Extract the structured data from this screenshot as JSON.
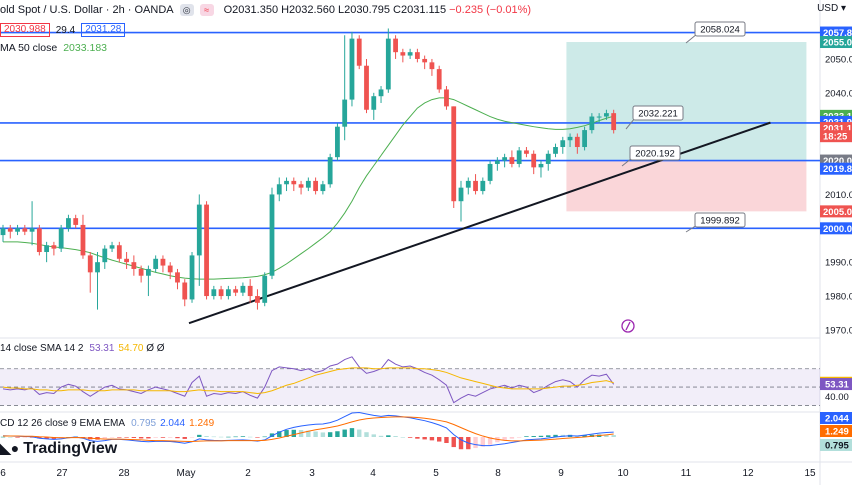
{
  "header": {
    "symbol": "old Spot / U.S. Dollar · 2h · OANDA",
    "ohlc": "O2031.350 H2032.560 L2030.795 C2031.115",
    "change": "−0.235 (−0.01%)",
    "sell_price": "2030.988",
    "spread": "29.4",
    "buy_price": "2031.28",
    "currency": "USD"
  },
  "indicators": {
    "ma_label": "MA 50 close",
    "ma_value": "2033.183",
    "rsi_label": "14 close SMA 14 2",
    "rsi_value": "53.31",
    "rsi_ma_value": "54.70",
    "rsi_extra": "Ø Ø",
    "macd_label": "CD 12 26 close 9 EMA EMA",
    "macd_hist": "0.795",
    "macd_line": "2.044",
    "macd_signal": "1.249"
  },
  "brand": "TradingView",
  "colors": {
    "up": "#26a69a",
    "down": "#ef5350",
    "ma": "#4caf50",
    "hline": "#2962ff",
    "trend": "#131722",
    "profit": "#b2dfdb",
    "loss": "#f8c8cc",
    "rsi": "#7e57c2",
    "rsi_ma": "#f5b700",
    "macd": "#2962ff",
    "signal": "#ff6d00"
  },
  "chart_data": {
    "type": "candlestick",
    "instrument": "XAU/USD",
    "timeframe": "2h",
    "x_ticks": [
      "6",
      "27",
      "28",
      "May",
      "2",
      "3",
      "4",
      "5",
      "8",
      "9",
      "10",
      "11",
      "12",
      "15"
    ],
    "y_ticks": [
      1970.0,
      1980.0,
      1990.0,
      2000.0,
      2010.0,
      2020.0,
      2030.0,
      2040.0,
      2050.0
    ],
    "ylim": [
      1968.5,
      2061.5
    ],
    "horizontal_lines": [
      2057.8,
      2031.1,
      2020.0,
      2000.0
    ],
    "annotations": [
      {
        "label": "2058.024",
        "price": 2058.024
      },
      {
        "label": "2032.221",
        "price": 2032.221
      },
      {
        "label": "2020.192",
        "price": 2020.192
      },
      {
        "label": "1999.892",
        "price": 1999.892
      }
    ],
    "position": {
      "entry": 2020.0,
      "target": 2055.0,
      "stop": 2005.0
    },
    "trendline": {
      "from_bar": 0.0,
      "from_price": 1972.0,
      "to_bar": 77.5,
      "to_price": 2031.2
    },
    "price_labels": [
      {
        "label": "2057.8",
        "price": 2057.8,
        "color": "#2962ff"
      },
      {
        "label": "2055.0",
        "price": 2055.0,
        "color": "#26a69a"
      },
      {
        "label": "2033.1",
        "price": 2033.2,
        "color": "#4caf50"
      },
      {
        "label": "2031.9",
        "price": 2031.4,
        "color": "#2962ff"
      },
      {
        "label": "2031.1",
        "price": 2029.6,
        "color": "#ef5350"
      },
      {
        "label": "18:25",
        "price": 2027.2,
        "color": "#ef5350"
      },
      {
        "label": "2020.0",
        "price": 2020.0,
        "color": "#787b86"
      },
      {
        "label": "2019.8",
        "price": 2017.6,
        "color": "#2962ff"
      },
      {
        "label": "2005.0",
        "price": 2005.0,
        "color": "#ef5350"
      },
      {
        "label": "2000.0",
        "price": 2000.0,
        "color": "#2962ff"
      }
    ],
    "candles": [
      {
        "o": 1998,
        "h": 2001,
        "l": 1996,
        "c": 2000
      },
      {
        "o": 2000,
        "h": 2001,
        "l": 1997,
        "c": 1999
      },
      {
        "o": 1999,
        "h": 2001,
        "l": 1998,
        "c": 2000
      },
      {
        "o": 2000,
        "h": 2001,
        "l": 1998,
        "c": 1999
      },
      {
        "o": 1999,
        "h": 2008,
        "l": 1995,
        "c": 2000
      },
      {
        "o": 2000,
        "h": 2001,
        "l": 1992,
        "c": 1993
      },
      {
        "o": 1993,
        "h": 1996,
        "l": 1990,
        "c": 1995
      },
      {
        "o": 1995,
        "h": 1996,
        "l": 1992,
        "c": 1994
      },
      {
        "o": 1994,
        "h": 2001,
        "l": 1993,
        "c": 2000
      },
      {
        "o": 2000,
        "h": 2004,
        "l": 1999,
        "c": 2003
      },
      {
        "o": 2003,
        "h": 2004,
        "l": 2000,
        "c": 2001
      },
      {
        "o": 2001,
        "h": 2004,
        "l": 1991,
        "c": 1992
      },
      {
        "o": 1992,
        "h": 1993,
        "l": 1981,
        "c": 1987
      },
      {
        "o": 1987,
        "h": 1993,
        "l": 1976,
        "c": 1990
      },
      {
        "o": 1990,
        "h": 1995,
        "l": 1988,
        "c": 1994
      },
      {
        "o": 1994,
        "h": 1996,
        "l": 1993,
        "c": 1995
      },
      {
        "o": 1995,
        "h": 1996,
        "l": 1990,
        "c": 1991
      },
      {
        "o": 1991,
        "h": 1993,
        "l": 1988,
        "c": 1990
      },
      {
        "o": 1990,
        "h": 1992,
        "l": 1986,
        "c": 1988
      },
      {
        "o": 1988,
        "h": 1989,
        "l": 1984,
        "c": 1986
      },
      {
        "o": 1986,
        "h": 1989,
        "l": 1980,
        "c": 1988
      },
      {
        "o": 1988,
        "h": 1992,
        "l": 1987,
        "c": 1991
      },
      {
        "o": 1991,
        "h": 1992,
        "l": 1987,
        "c": 1989
      },
      {
        "o": 1989,
        "h": 1990,
        "l": 1985,
        "c": 1987
      },
      {
        "o": 1987,
        "h": 1988,
        "l": 1982,
        "c": 1984
      },
      {
        "o": 1984,
        "h": 1985,
        "l": 1977,
        "c": 1979
      },
      {
        "o": 1979,
        "h": 1993,
        "l": 1978,
        "c": 1992
      },
      {
        "o": 1992,
        "h": 2010,
        "l": 1983,
        "c": 2007
      },
      {
        "o": 2007,
        "h": 2008,
        "l": 1979,
        "c": 1980
      },
      {
        "o": 1980,
        "h": 1983,
        "l": 1979,
        "c": 1982
      },
      {
        "o": 1982,
        "h": 1983,
        "l": 1979,
        "c": 1980
      },
      {
        "o": 1980,
        "h": 1983,
        "l": 1979,
        "c": 1982
      },
      {
        "o": 1982,
        "h": 1983,
        "l": 1980,
        "c": 1981
      },
      {
        "o": 1981,
        "h": 1984,
        "l": 1980,
        "c": 1983
      },
      {
        "o": 1983,
        "h": 1985,
        "l": 1978,
        "c": 1980
      },
      {
        "o": 1980,
        "h": 1982,
        "l": 1976,
        "c": 1978
      },
      {
        "o": 1978,
        "h": 1987,
        "l": 1977,
        "c": 1986
      },
      {
        "o": 1986,
        "h": 2012,
        "l": 1985,
        "c": 2010
      },
      {
        "o": 2010,
        "h": 2015,
        "l": 2008,
        "c": 2013
      },
      {
        "o": 2013,
        "h": 2015,
        "l": 2011,
        "c": 2014
      },
      {
        "o": 2014,
        "h": 2015,
        "l": 2011,
        "c": 2013
      },
      {
        "o": 2013,
        "h": 2014,
        "l": 2010,
        "c": 2012
      },
      {
        "o": 2012,
        "h": 2015,
        "l": 2011,
        "c": 2014
      },
      {
        "o": 2014,
        "h": 2015,
        "l": 2010,
        "c": 2011
      },
      {
        "o": 2011,
        "h": 2014,
        "l": 2010,
        "c": 2013
      },
      {
        "o": 2013,
        "h": 2022,
        "l": 2012,
        "c": 2021
      },
      {
        "o": 2021,
        "h": 2031,
        "l": 2020,
        "c": 2030
      },
      {
        "o": 2030,
        "h": 2057,
        "l": 2026,
        "c": 2038
      },
      {
        "o": 2038,
        "h": 2058,
        "l": 2036,
        "c": 2056
      },
      {
        "o": 2056,
        "h": 2057,
        "l": 2047,
        "c": 2048
      },
      {
        "o": 2048,
        "h": 2050,
        "l": 2034,
        "c": 2035
      },
      {
        "o": 2035,
        "h": 2040,
        "l": 2032,
        "c": 2039
      },
      {
        "o": 2039,
        "h": 2042,
        "l": 2037,
        "c": 2041
      },
      {
        "o": 2041,
        "h": 2059,
        "l": 2040,
        "c": 2056
      },
      {
        "o": 2056,
        "h": 2057,
        "l": 2050,
        "c": 2052
      },
      {
        "o": 2052,
        "h": 2053,
        "l": 2049,
        "c": 2051
      },
      {
        "o": 2051,
        "h": 2053,
        "l": 2050,
        "c": 2052
      },
      {
        "o": 2052,
        "h": 2053,
        "l": 2049,
        "c": 2050
      },
      {
        "o": 2050,
        "h": 2051,
        "l": 2047,
        "c": 2049
      },
      {
        "o": 2049,
        "h": 2050,
        "l": 2045,
        "c": 2047
      },
      {
        "o": 2047,
        "h": 2048,
        "l": 2040,
        "c": 2041
      },
      {
        "o": 2041,
        "h": 2042,
        "l": 2035,
        "c": 2036
      },
      {
        "o": 2036,
        "h": 2036,
        "l": 2006,
        "c": 2008
      },
      {
        "o": 2008,
        "h": 2014,
        "l": 2002,
        "c": 2012
      },
      {
        "o": 2012,
        "h": 2015,
        "l": 2010,
        "c": 2014
      },
      {
        "o": 2014,
        "h": 2016,
        "l": 2010,
        "c": 2011
      },
      {
        "o": 2011,
        "h": 2015,
        "l": 2010,
        "c": 2014
      },
      {
        "o": 2014,
        "h": 2020,
        "l": 2013,
        "c": 2019
      },
      {
        "o": 2019,
        "h": 2021,
        "l": 2017,
        "c": 2020
      },
      {
        "o": 2020,
        "h": 2022,
        "l": 2018,
        "c": 2021
      },
      {
        "o": 2021,
        "h": 2023,
        "l": 2018,
        "c": 2019
      },
      {
        "o": 2019,
        "h": 2024,
        "l": 2018,
        "c": 2023
      },
      {
        "o": 2023,
        "h": 2024,
        "l": 2021,
        "c": 2022
      },
      {
        "o": 2022,
        "h": 2023,
        "l": 2016,
        "c": 2018
      },
      {
        "o": 2018,
        "h": 2020,
        "l": 2015,
        "c": 2019
      },
      {
        "o": 2019,
        "h": 2023,
        "l": 2017,
        "c": 2022
      },
      {
        "o": 2022,
        "h": 2025,
        "l": 2021,
        "c": 2024
      },
      {
        "o": 2024,
        "h": 2027,
        "l": 2022,
        "c": 2026
      },
      {
        "o": 2026,
        "h": 2028,
        "l": 2024,
        "c": 2027
      },
      {
        "o": 2027,
        "h": 2028,
        "l": 2022,
        "c": 2024
      },
      {
        "o": 2024,
        "h": 2030,
        "l": 2023,
        "c": 2029
      },
      {
        "o": 2029,
        "h": 2034,
        "l": 2028,
        "c": 2033
      },
      {
        "o": 2033,
        "h": 2034,
        "l": 2031,
        "c": 2033
      },
      {
        "o": 2033,
        "h": 2035,
        "l": 2032,
        "c": 2034
      },
      {
        "o": 2034,
        "h": 2035,
        "l": 2028,
        "c": 2029
      }
    ],
    "ma50": [
      1996,
      1996,
      1996,
      1995.8,
      1995.6,
      1995.2,
      1994.8,
      1994.5,
      1994.3,
      1994.0,
      1993.7,
      1993.3,
      1992.8,
      1992.0,
      1991.3,
      1990.6,
      1990.0,
      1989.4,
      1988.8,
      1988.2,
      1987.6,
      1987.0,
      1986.5,
      1986.0,
      1985.6,
      1985.3,
      1985.1,
      1985.0,
      1985.0,
      1985.0,
      1985.1,
      1985.2,
      1985.3,
      1985.4,
      1985.6,
      1985.8,
      1986.3,
      1987.0,
      1988.2,
      1989.5,
      1991.0,
      1992.5,
      1994.0,
      1995.6,
      1997.2,
      1999.0,
      2001.5,
      2004.5,
      2008.0,
      2012.0,
      2015.5,
      2018.5,
      2021.5,
      2024.5,
      2027.5,
      2030.5,
      2033.0,
      2035.5,
      2037.0,
      2038.0,
      2038.5,
      2038.5,
      2038.0,
      2037.0,
      2036.0,
      2035.0,
      2034.0,
      2033.0,
      2032.2,
      2031.6,
      2031.2,
      2030.8,
      2030.4,
      2030.0,
      2029.7,
      2029.4,
      2029.2,
      2029.2,
      2029.4,
      2029.8,
      2030.3,
      2031.0,
      2031.8,
      2032.5,
      2033.1
    ],
    "rsi": [
      48,
      47,
      48,
      47,
      49,
      42,
      44,
      43,
      50,
      53,
      51,
      45,
      40,
      45,
      50,
      52,
      48,
      47,
      45,
      43,
      47,
      50,
      48,
      46,
      43,
      40,
      55,
      62,
      40,
      43,
      42,
      44,
      43,
      45,
      41,
      38,
      50,
      68,
      72,
      71,
      70,
      68,
      70,
      66,
      68,
      73,
      75,
      80,
      83,
      72,
      65,
      67,
      70,
      80,
      75,
      72,
      73,
      70,
      66,
      63,
      58,
      52,
      33,
      38,
      42,
      40,
      44,
      48,
      50,
      52,
      49,
      52,
      50,
      44,
      47,
      52,
      56,
      58,
      56,
      50,
      58,
      63,
      62,
      64,
      53
    ],
    "rsi_ma": [
      50,
      49,
      49,
      48,
      48,
      47,
      47,
      46,
      46,
      47,
      47,
      47,
      46,
      46,
      46,
      47,
      47,
      47,
      47,
      46,
      46,
      46,
      46,
      46,
      45,
      45,
      46,
      47,
      46,
      46,
      45,
      45,
      45,
      45,
      44,
      43,
      44,
      46,
      49,
      52,
      54,
      57,
      60,
      63,
      65,
      67,
      69,
      70,
      71,
      71,
      71,
      70,
      70,
      71,
      71,
      71,
      71,
      70,
      70,
      69,
      68,
      66,
      63,
      60,
      58,
      56,
      54,
      52,
      50,
      49,
      48,
      48,
      48,
      48,
      48,
      49,
      50,
      51,
      51,
      52,
      53,
      55,
      56,
      57,
      54.7
    ],
    "rsi_levels": [
      70,
      50,
      30
    ],
    "rsi_axis_ticks": [
      40.0
    ],
    "macd": [
      0.5,
      0.4,
      0.3,
      0.2,
      0.1,
      -0.5,
      -0.8,
      -1.0,
      -0.8,
      -0.3,
      0.0,
      -0.5,
      -1.5,
      -1.8,
      -1.5,
      -1.0,
      -1.0,
      -1.2,
      -1.5,
      -1.8,
      -2.0,
      -1.8,
      -1.8,
      -1.9,
      -2.2,
      -2.6,
      -2.0,
      -0.8,
      -1.2,
      -1.4,
      -1.5,
      -1.4,
      -1.3,
      -1.2,
      -1.4,
      -1.7,
      -1.2,
      0.5,
      2.0,
      3.2,
      4.0,
      4.6,
      5.0,
      5.3,
      5.4,
      6.0,
      7.0,
      8.5,
      10.0,
      10.2,
      9.6,
      9.0,
      8.6,
      9.0,
      8.8,
      8.4,
      8.0,
      7.4,
      6.8,
      6.0,
      5.0,
      3.8,
      1.0,
      -1.2,
      -2.5,
      -3.2,
      -3.6,
      -3.6,
      -3.2,
      -2.8,
      -2.3,
      -1.8,
      -1.2,
      -1.0,
      -0.8,
      -0.4,
      0.0,
      0.3,
      0.5,
      0.4,
      0.8,
      1.2,
      1.6,
      1.9,
      2.044
    ],
    "signal": [
      0.4,
      0.4,
      0.4,
      0.3,
      0.3,
      0.1,
      0.0,
      -0.2,
      -0.3,
      -0.3,
      -0.2,
      -0.3,
      -0.5,
      -0.7,
      -0.9,
      -0.9,
      -0.9,
      -1.0,
      -1.1,
      -1.2,
      -1.4,
      -1.5,
      -1.5,
      -1.6,
      -1.7,
      -1.8,
      -1.9,
      -1.7,
      -1.6,
      -1.6,
      -1.6,
      -1.5,
      -1.5,
      -1.5,
      -1.5,
      -1.5,
      -1.4,
      -1.0,
      -0.4,
      0.3,
      1.0,
      1.7,
      2.4,
      3.0,
      3.5,
      4.0,
      4.6,
      5.4,
      6.3,
      7.1,
      7.6,
      7.9,
      8.1,
      8.3,
      8.4,
      8.4,
      8.3,
      8.1,
      7.8,
      7.4,
      6.9,
      6.3,
      5.2,
      3.9,
      2.6,
      1.4,
      0.4,
      -0.4,
      -1.0,
      -1.4,
      -1.6,
      -1.6,
      -1.5,
      -1.4,
      -1.3,
      -1.1,
      -0.9,
      -0.6,
      -0.4,
      -0.2,
      0.0,
      0.3,
      0.6,
      0.9,
      1.249
    ]
  }
}
